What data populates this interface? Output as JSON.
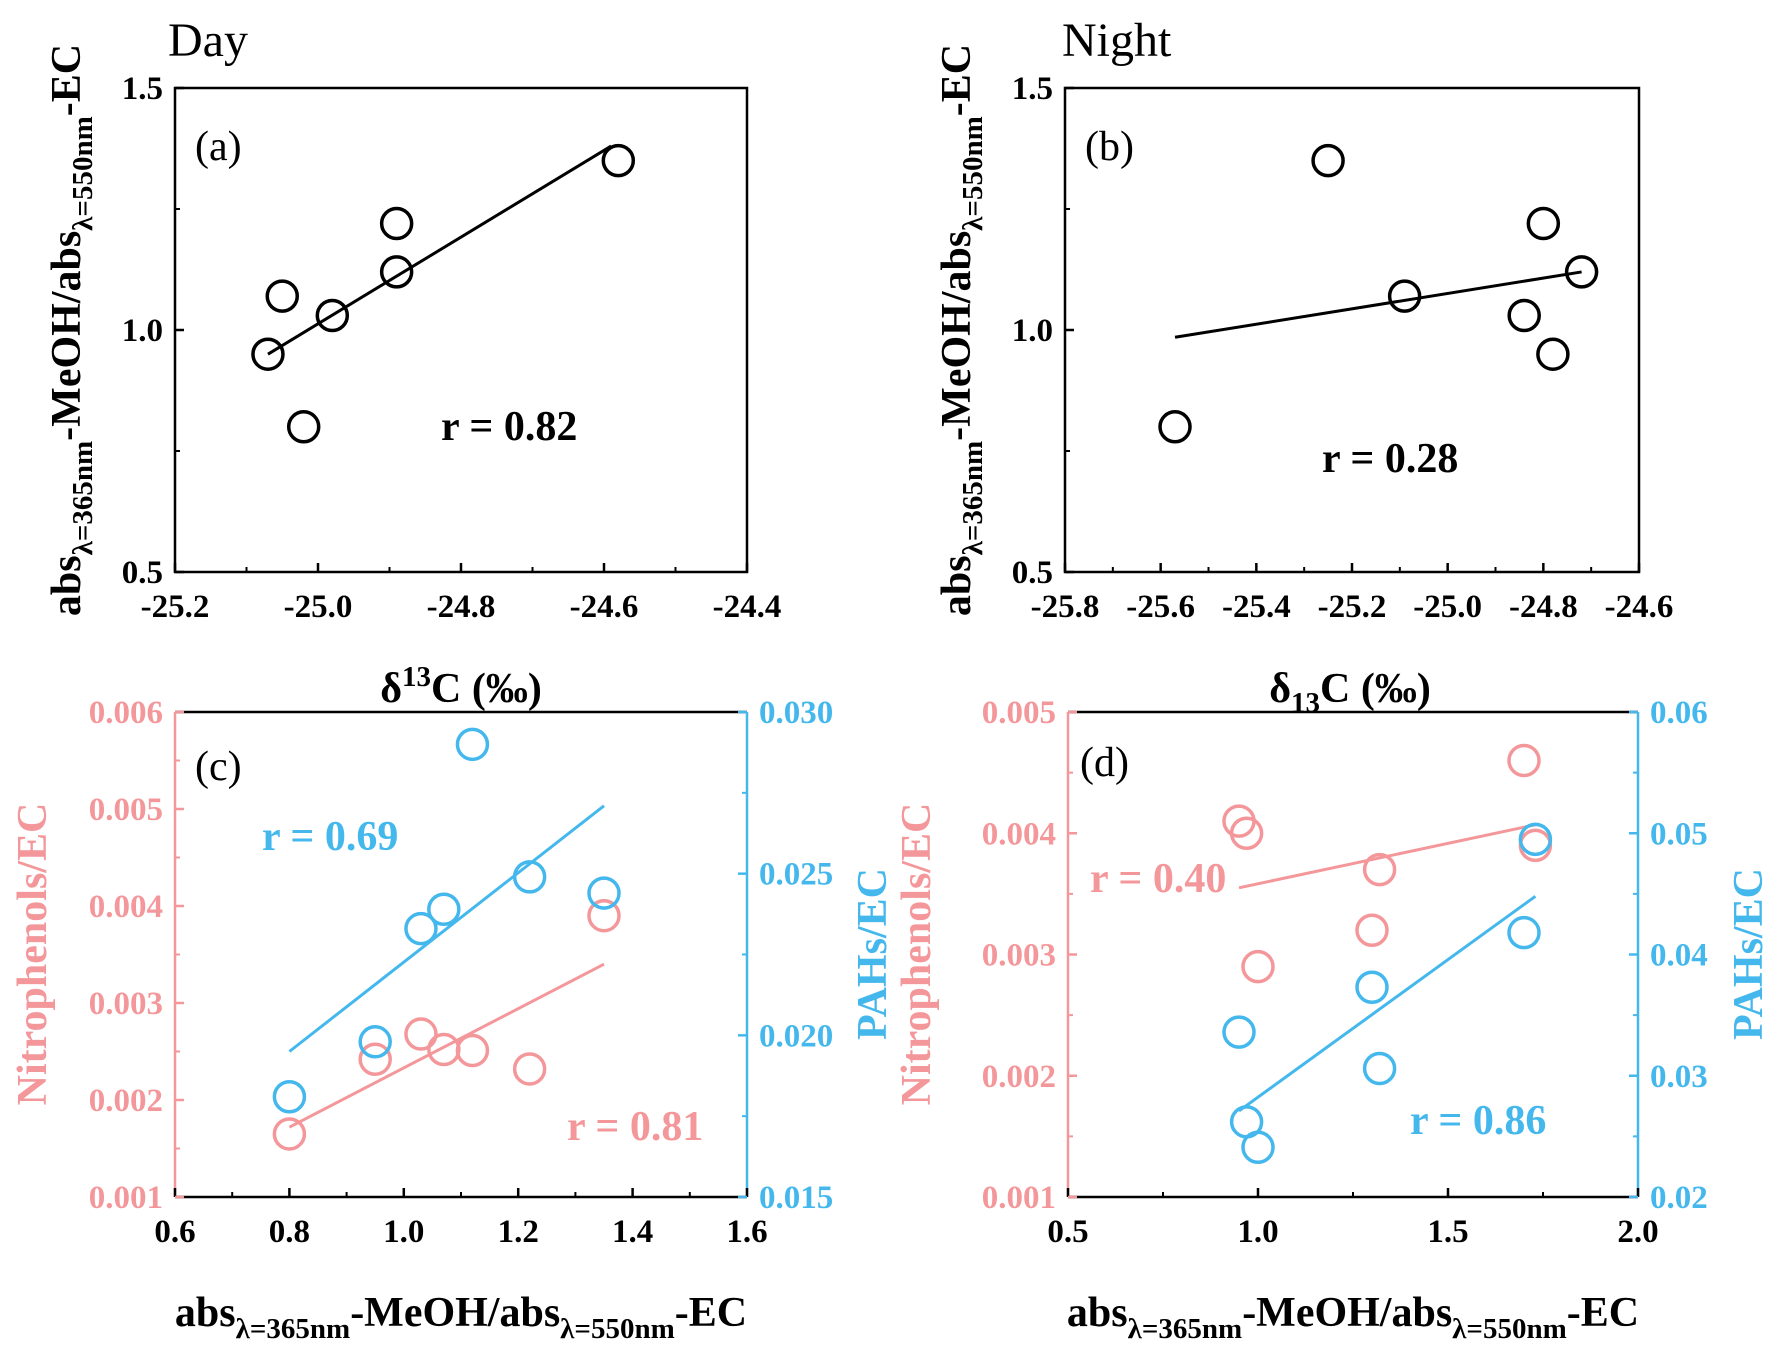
{
  "colors": {
    "black": "#000000",
    "pink": "#F4979A",
    "blue": "#44B8ED"
  },
  "chart_data": [
    {
      "id": "a",
      "type": "scatter",
      "title": "Day",
      "panel_label": "(a)",
      "r_label": "r = 0.82",
      "xlabel": {
        "main": "δ",
        "sup": "13",
        "tail": "C (‰)"
      },
      "ylabel": {
        "pre": "abs",
        "sub1": "λ=365nm",
        "mid": "-MeOH/abs",
        "sub2": "λ=550nm",
        "post": "-EC"
      },
      "xlim": [
        -25.2,
        -24.4
      ],
      "ylim": [
        0.5,
        1.5
      ],
      "xticks": [
        -25.2,
        -25.0,
        -24.8,
        -24.6,
        -24.4
      ],
      "xticklabels": [
        "-25.2",
        "-25.0",
        "-24.8",
        "-24.6",
        "-24.4"
      ],
      "yticks": [
        0.5,
        1.0,
        1.5
      ],
      "yticklabels": [
        "0.5",
        "1.0",
        "1.5"
      ],
      "series": [
        {
          "axis": "left",
          "color": "#000000",
          "x": [
            -25.07,
            -25.05,
            -25.02,
            -24.98,
            -24.89,
            -24.89,
            -24.58
          ],
          "y": [
            0.95,
            1.07,
            0.8,
            1.03,
            1.12,
            1.22,
            1.35
          ],
          "fit": [
            [
              -25.07,
              0.95
            ],
            [
              -24.59,
              1.38
            ]
          ]
        }
      ]
    },
    {
      "id": "b",
      "type": "scatter",
      "title": "Night",
      "panel_label": "(b)",
      "r_label": "r = 0.28",
      "xlabel": {
        "main": "δ",
        "sub": "13",
        "tail": "C (‰)"
      },
      "ylabel": {
        "pre": "abs",
        "sub1": "λ=365nm",
        "mid": "-MeOH/abs",
        "sub2": "λ=550nm",
        "post": "-EC"
      },
      "xlim": [
        -25.8,
        -24.6
      ],
      "ylim": [
        0.5,
        1.5
      ],
      "xticks": [
        -25.8,
        -25.6,
        -25.4,
        -25.2,
        -25.0,
        -24.8,
        -24.6
      ],
      "xticklabels": [
        "-25.8",
        "-25.6",
        "-25.4",
        "-25.2",
        "-25.0",
        "-24.8",
        "-24.6"
      ],
      "yticks": [
        0.5,
        1.0,
        1.5
      ],
      "yticklabels": [
        "0.5",
        "1.0",
        "1.5"
      ],
      "series": [
        {
          "axis": "left",
          "color": "#000000",
          "x": [
            -25.57,
            -25.25,
            -25.09,
            -24.84,
            -24.8,
            -24.78,
            -24.72
          ],
          "y": [
            0.8,
            1.35,
            1.07,
            1.03,
            1.22,
            0.95,
            1.12
          ],
          "fit": [
            [
              -25.57,
              0.985
            ],
            [
              -24.72,
              1.12
            ]
          ]
        }
      ]
    },
    {
      "id": "c",
      "type": "scatter",
      "panel_label": "(c)",
      "xlabel": {
        "pre": "abs",
        "sub1": "λ=365nm",
        "mid": "-MeOH/abs",
        "sub2": "λ=550nm",
        "post": "-EC"
      },
      "ylabel_left": "Nitrophenols/EC",
      "ylabel_right": "PAHs/EC",
      "xlim": [
        0.6,
        1.6
      ],
      "ylim_left": [
        0.001,
        0.006
      ],
      "ylim_right": [
        0.015,
        0.03
      ],
      "xticks": [
        0.6,
        0.8,
        1.0,
        1.2,
        1.4,
        1.6
      ],
      "xticklabels": [
        "0.6",
        "0.8",
        "1.0",
        "1.2",
        "1.4",
        "1.6"
      ],
      "yticks_left": [
        0.001,
        0.002,
        0.003,
        0.004,
        0.005,
        0.006
      ],
      "yticklabels_left": [
        "0.001",
        "0.002",
        "0.003",
        "0.004",
        "0.005",
        "0.006"
      ],
      "yticks_right": [
        0.015,
        0.02,
        0.025,
        0.03
      ],
      "yticklabels_right": [
        "0.015",
        "0.020",
        "0.025",
        "0.030"
      ],
      "series": [
        {
          "axis": "left",
          "color": "#F4979A",
          "r_label": "r = 0.81",
          "x": [
            0.8,
            0.95,
            1.03,
            1.07,
            1.12,
            1.22,
            1.35
          ],
          "y": [
            0.00165,
            0.00242,
            0.00268,
            0.00252,
            0.00251,
            0.00232,
            0.0039
          ],
          "fit": [
            [
              0.8,
              0.00172
            ],
            [
              1.35,
              0.0034
            ]
          ]
        },
        {
          "axis": "right",
          "color": "#44B8ED",
          "r_label": "r = 0.69",
          "x": [
            0.8,
            0.95,
            1.03,
            1.07,
            1.12,
            1.22,
            1.35
          ],
          "y": [
            0.0181,
            0.0198,
            0.0233,
            0.0239,
            0.029,
            0.0249,
            0.0244
          ],
          "fit": [
            [
              0.8,
              0.0195
            ],
            [
              1.35,
              0.0271
            ]
          ]
        }
      ]
    },
    {
      "id": "d",
      "type": "scatter",
      "panel_label": "(d)",
      "xlabel": {
        "pre": "abs",
        "sub1": "λ=365nm",
        "mid": "-MeOH/abs",
        "sub2": "λ=550nm",
        "post": "-EC"
      },
      "ylabel_left": "Nitrophenols/EC",
      "ylabel_right": "PAHs/EC",
      "xlim": [
        0.5,
        2.0
      ],
      "ylim_left": [
        0.001,
        0.005
      ],
      "ylim_right": [
        0.02,
        0.06
      ],
      "xticks": [
        0.5,
        1.0,
        1.5,
        2.0
      ],
      "xticklabels": [
        "0.5",
        "1.0",
        "1.5",
        "2.0"
      ],
      "yticks_left": [
        0.001,
        0.002,
        0.003,
        0.004,
        0.005
      ],
      "yticklabels_left": [
        "0.001",
        "0.002",
        "0.003",
        "0.004",
        "0.005"
      ],
      "yticks_right": [
        0.02,
        0.03,
        0.04,
        0.05,
        0.06
      ],
      "yticklabels_right": [
        "0.02",
        "0.03",
        "0.04",
        "0.05",
        "0.06"
      ],
      "series": [
        {
          "axis": "left",
          "color": "#F4979A",
          "r_label": "r = 0.40",
          "x": [
            0.95,
            0.97,
            1.0,
            1.3,
            1.32,
            1.7,
            1.73
          ],
          "y": [
            0.0041,
            0.004,
            0.0029,
            0.0032,
            0.0037,
            0.0046,
            0.0039
          ],
          "fit": [
            [
              0.95,
              0.00355
            ],
            [
              1.73,
              0.00407
            ]
          ]
        },
        {
          "axis": "right",
          "color": "#44B8ED",
          "r_label": "r = 0.86",
          "x": [
            0.95,
            0.97,
            1.0,
            1.3,
            1.32,
            1.7,
            1.73
          ],
          "y": [
            0.0336,
            0.0262,
            0.0241,
            0.0373,
            0.0306,
            0.0418,
            0.0495
          ],
          "fit": [
            [
              0.95,
              0.0271
            ],
            [
              1.73,
              0.0448
            ]
          ]
        }
      ]
    }
  ]
}
